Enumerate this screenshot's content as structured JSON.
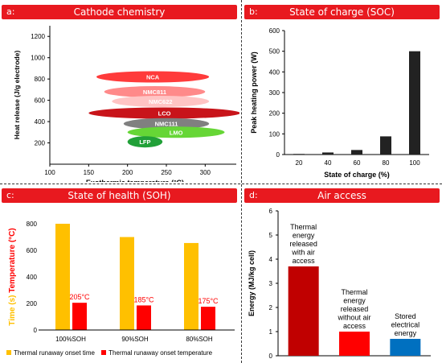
{
  "panels": {
    "a": {
      "label": "a:",
      "title": "Cathode chemistry"
    },
    "b": {
      "label": "b:",
      "title": "State of charge (SOC)"
    },
    "c": {
      "label": "c:",
      "title": "State of health (SOH)"
    },
    "d": {
      "label": "d:",
      "title": "Air access"
    }
  },
  "colors": {
    "banner": "#e8191f",
    "yellow": "#ffc000",
    "red": "#ff0000",
    "darkred": "#c00000",
    "blue": "#0070c0",
    "dark": "#222222"
  },
  "chart_data": [
    {
      "type": "scatter",
      "title": "Cathode chemistry",
      "xlabel": "Exothermic temperature (°C)",
      "ylabel": "Heat release (J/g electrode)",
      "xlim": [
        100,
        340
      ],
      "ylim": [
        0,
        1300
      ],
      "xticks": [
        100,
        150,
        200,
        250,
        300
      ],
      "yticks": [
        200,
        400,
        600,
        800,
        1000,
        1200
      ],
      "grid": false,
      "regions": [
        {
          "name": "NCA",
          "x_min": 160,
          "x_max": 305,
          "y": 820,
          "color": "#ff3b3b"
        },
        {
          "name": "NMC811",
          "x_min": 170,
          "x_max": 300,
          "y": 680,
          "color": "#ff8a8a"
        },
        {
          "name": "NMC622",
          "x_min": 180,
          "x_max": 305,
          "y": 590,
          "color": "#ffc4c4"
        },
        {
          "name": "LCO",
          "x_min": 150,
          "x_max": 345,
          "y": 480,
          "color": "#c8141a"
        },
        {
          "name": "NMC111",
          "x_min": 195,
          "x_max": 305,
          "y": 380,
          "color": "#808080"
        },
        {
          "name": "LMO",
          "x_min": 200,
          "x_max": 325,
          "y": 300,
          "color": "#66d636"
        },
        {
          "name": "LFP",
          "x_min": 200,
          "x_max": 245,
          "y": 210,
          "color": "#21a038"
        }
      ]
    },
    {
      "type": "bar",
      "title": "State of charge (SOC)",
      "xlabel": "State of charge (%)",
      "ylabel": "Peak heating power (W)",
      "categories": [
        "20",
        "40",
        "60",
        "80",
        "100"
      ],
      "values": [
        3,
        10,
        22,
        88,
        500
      ],
      "ylim": [
        0,
        600
      ],
      "yticks": [
        0,
        100,
        200,
        300,
        400,
        500,
        600
      ],
      "color": "#222222"
    },
    {
      "type": "bar",
      "title": "State of health (SOH)",
      "ylabel_parts": [
        "Time (s)",
        "Temperature (°C)"
      ],
      "categories": [
        "100%SOH",
        "90%SOH",
        "80%SOH"
      ],
      "ylim": [
        0,
        800
      ],
      "yticks": [
        0,
        200,
        400,
        600,
        800
      ],
      "series": [
        {
          "name": "Thermal runaway onset time",
          "values": [
            800,
            700,
            655
          ],
          "color": "#ffc000"
        },
        {
          "name": "Thermal runaway onset temperature",
          "values": [
            205,
            185,
            175
          ],
          "labels": [
            "205°C",
            "185°C",
            "175°C"
          ],
          "color": "#ff0000"
        }
      ],
      "legend": "bottom"
    },
    {
      "type": "bar",
      "title": "Air access",
      "ylabel": "Energy (MJ/kg cell)",
      "categories": [
        "Thermal energy released with air access",
        "Thermal energy released without air access",
        "Stored electrical energy"
      ],
      "category_lines": [
        [
          "Thermal",
          "energy",
          "released",
          "with air",
          "access"
        ],
        [
          "Thermal",
          "energy",
          "released",
          "without air",
          "access"
        ],
        [
          "Stored",
          "electrical",
          "energy"
        ]
      ],
      "values": [
        3.7,
        1.0,
        0.7
      ],
      "colors": [
        "#c00000",
        "#ff0000",
        "#0070c0"
      ],
      "ylim": [
        0,
        6
      ],
      "yticks": [
        0,
        1,
        2,
        3,
        4,
        5,
        6
      ]
    }
  ]
}
